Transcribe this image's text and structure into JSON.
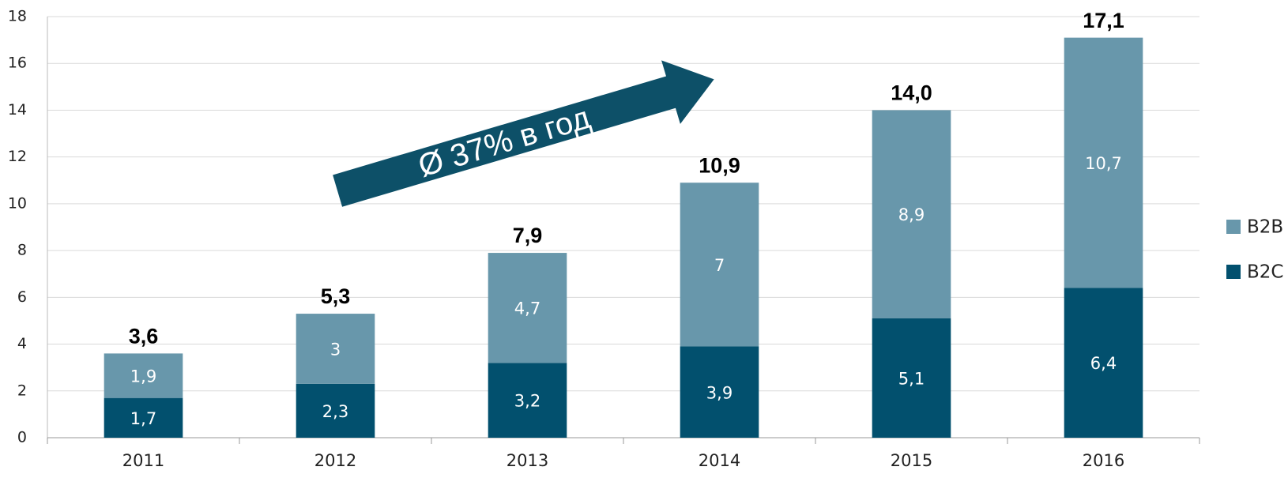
{
  "chart_data": {
    "type": "stacked_bar",
    "categories": [
      "2011",
      "2012",
      "2013",
      "2014",
      "2015",
      "2016"
    ],
    "series": [
      {
        "name": "B2C",
        "color": "#02506e",
        "values": [
          1.7,
          2.3,
          3.2,
          3.9,
          5.1,
          6.4
        ],
        "value_labels": [
          "1,7",
          "2,3",
          "3,2",
          "3,9",
          "5,1",
          "6,4"
        ]
      },
      {
        "name": "B2B",
        "color": "#6897ab",
        "values": [
          1.9,
          3,
          4.7,
          7,
          8.9,
          10.7
        ],
        "value_labels": [
          "1,9",
          "3",
          "4,7",
          "7",
          "8,9",
          "10,7"
        ]
      }
    ],
    "totals": [
      3.6,
      5.3,
      7.9,
      10.9,
      14.0,
      17.1
    ],
    "total_labels": [
      "3,6",
      "5,3",
      "7,9",
      "10,9",
      "14,0",
      "17,1"
    ],
    "annotation": "Ø 37% в год",
    "ylim": [
      0,
      18
    ],
    "yticks": [
      0,
      2,
      4,
      6,
      8,
      10,
      12,
      14,
      16,
      18
    ],
    "grid": true,
    "legend": "right"
  }
}
